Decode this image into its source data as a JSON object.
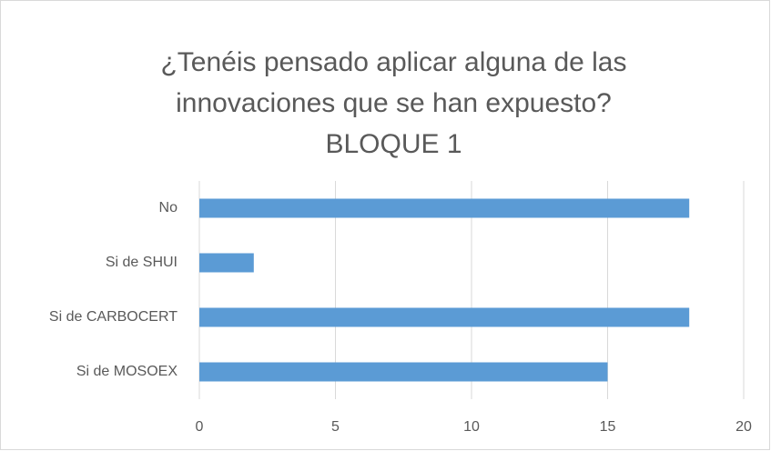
{
  "chart_data": {
    "type": "barh",
    "title": "¿Tenéis pensado aplicar alguna de las\ninnovaciones que se han expuesto?\nBLOQUE 1",
    "categories": [
      "No",
      "Si de SHUI",
      "Si de CARBOCERT",
      "Si de MOSOEX"
    ],
    "values": [
      18,
      2,
      18,
      15
    ],
    "color": "#5b9bd5",
    "xlim": [
      0,
      20
    ],
    "xticks": [
      0,
      5,
      10,
      15,
      20
    ],
    "grid": true
  }
}
